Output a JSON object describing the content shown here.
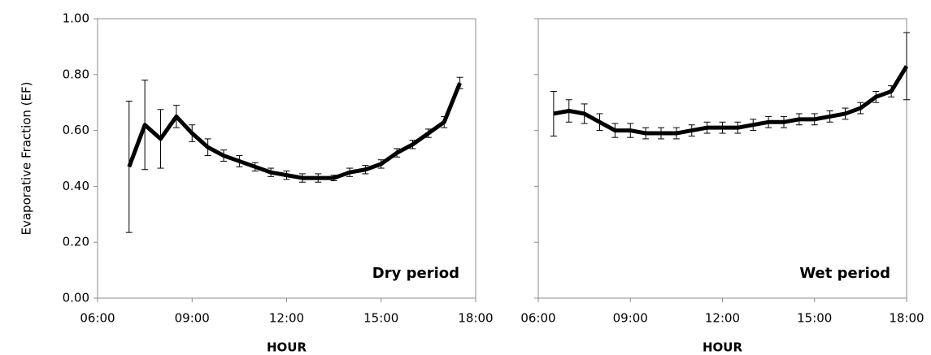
{
  "chart_data": [
    {
      "type": "line",
      "ylabel": "Evaporative Fraction (EF)",
      "xlabel": "HOUR",
      "annotation": "Dry period",
      "color": "#000000",
      "x": [
        7,
        7.5,
        8,
        8.5,
        9,
        9.5,
        10,
        10.5,
        11,
        11.5,
        12,
        12.5,
        13,
        13.5,
        14,
        14.5,
        15,
        15.5,
        16,
        16.5,
        17,
        17.5
      ],
      "values": [
        0.47,
        0.62,
        0.57,
        0.65,
        0.59,
        0.54,
        0.51,
        0.49,
        0.47,
        0.45,
        0.44,
        0.43,
        0.43,
        0.43,
        0.45,
        0.46,
        0.48,
        0.52,
        0.55,
        0.59,
        0.63,
        0.77
      ],
      "errors": [
        0.235,
        0.16,
        0.105,
        0.04,
        0.03,
        0.03,
        0.02,
        0.02,
        0.015,
        0.015,
        0.015,
        0.015,
        0.015,
        0.01,
        0.015,
        0.015,
        0.015,
        0.015,
        0.015,
        0.015,
        0.02,
        0.02
      ],
      "xlim": [
        6,
        18
      ],
      "xticks": [
        {
          "value": 6,
          "label": "06:00"
        },
        {
          "value": 9,
          "label": "09:00"
        },
        {
          "value": 12,
          "label": "12:00"
        },
        {
          "value": 15,
          "label": "15:00"
        },
        {
          "value": 18,
          "label": "18:00"
        }
      ],
      "ylim": [
        0,
        1
      ],
      "yticks": [
        {
          "value": 0,
          "label": "0.00"
        },
        {
          "value": 0.2,
          "label": "0.20"
        },
        {
          "value": 0.4,
          "label": "0.40"
        },
        {
          "value": 0.6,
          "label": "0.60"
        },
        {
          "value": 0.8,
          "label": "0.80"
        },
        {
          "value": 1,
          "label": "1.00"
        }
      ]
    },
    {
      "type": "line",
      "xlabel": "HOUR",
      "annotation": "Wet  period",
      "color": "#000000",
      "x": [
        6.5,
        7,
        7.5,
        8,
        8.5,
        9,
        9.5,
        10,
        10.5,
        11,
        11.5,
        12,
        12.5,
        13,
        13.5,
        14,
        14.5,
        15,
        15.5,
        16,
        16.5,
        17,
        17.5,
        18
      ],
      "values": [
        0.66,
        0.67,
        0.66,
        0.63,
        0.6,
        0.6,
        0.59,
        0.59,
        0.59,
        0.6,
        0.61,
        0.61,
        0.61,
        0.62,
        0.63,
        0.63,
        0.64,
        0.64,
        0.65,
        0.66,
        0.68,
        0.72,
        0.74,
        0.83
      ],
      "errors": [
        0.08,
        0.04,
        0.035,
        0.03,
        0.025,
        0.025,
        0.02,
        0.02,
        0.02,
        0.02,
        0.02,
        0.02,
        0.02,
        0.02,
        0.02,
        0.02,
        0.02,
        0.02,
        0.02,
        0.02,
        0.02,
        0.02,
        0.02,
        0.12
      ],
      "xlim": [
        6,
        18
      ],
      "xticks": [
        {
          "value": 6,
          "label": "06:00"
        },
        {
          "value": 9,
          "label": "09:00"
        },
        {
          "value": 12,
          "label": "12:00"
        },
        {
          "value": 15,
          "label": "15:00"
        },
        {
          "value": 18,
          "label": "18:00"
        }
      ],
      "ylim": [
        0,
        1
      ],
      "yticks": [
        0,
        0.2,
        0.4,
        0.6,
        0.8,
        1
      ]
    }
  ]
}
